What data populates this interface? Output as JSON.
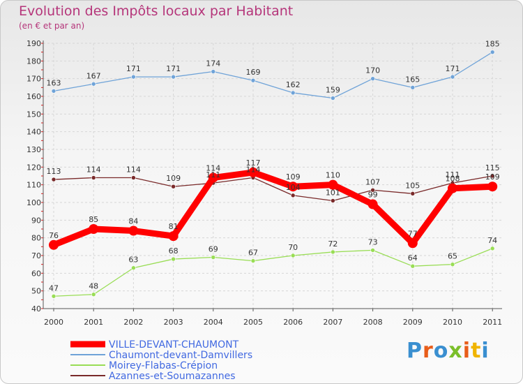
{
  "header": {
    "title": "Evolution des Impôts locaux par Habitant",
    "subtitle": "(en € et par an)"
  },
  "logo": {
    "text": "Proxiti",
    "letter_colors": [
      "#3a8fd0",
      "#e85d1a",
      "#3a8fd0",
      "#7bbf2a",
      "#e85d1a",
      "#f0b400",
      "#3a8fd0"
    ]
  },
  "chart_data": {
    "type": "line",
    "title": "Evolution des Impôts locaux par Habitant",
    "subtitle": "(en € et par an)",
    "xlabel": "",
    "ylabel": "",
    "categories": [
      "2000",
      "2001",
      "2002",
      "2003",
      "2004",
      "2005",
      "2006",
      "2007",
      "2008",
      "2009",
      "2010",
      "2011"
    ],
    "ylim": [
      40,
      190
    ],
    "yticks": [
      40,
      50,
      60,
      70,
      80,
      90,
      100,
      110,
      120,
      130,
      140,
      150,
      160,
      170,
      180,
      190
    ],
    "grid": true,
    "legend_position": "bottom-left",
    "series": [
      {
        "name": "VILLE-DEVANT-CHAUMONT",
        "color": "#ff0000",
        "values": [
          76,
          85,
          84,
          81,
          114,
          117,
          109,
          110,
          99,
          77,
          108,
          109
        ]
      },
      {
        "name": "Chaumont-devant-Damvillers",
        "color": "#6fa3d8",
        "values": [
          163,
          167,
          171,
          171,
          174,
          169,
          162,
          159,
          170,
          165,
          171,
          185
        ]
      },
      {
        "name": "Moirey-Flabas-Crépion",
        "color": "#99dd55",
        "values": [
          47,
          48,
          63,
          68,
          69,
          67,
          70,
          72,
          73,
          64,
          65,
          74
        ]
      },
      {
        "name": "Azannes-et-Soumazannes",
        "color": "#7a2a2a",
        "values": [
          113,
          114,
          114,
          109,
          111,
          114,
          104,
          101,
          107,
          105,
          111,
          115
        ]
      }
    ]
  }
}
